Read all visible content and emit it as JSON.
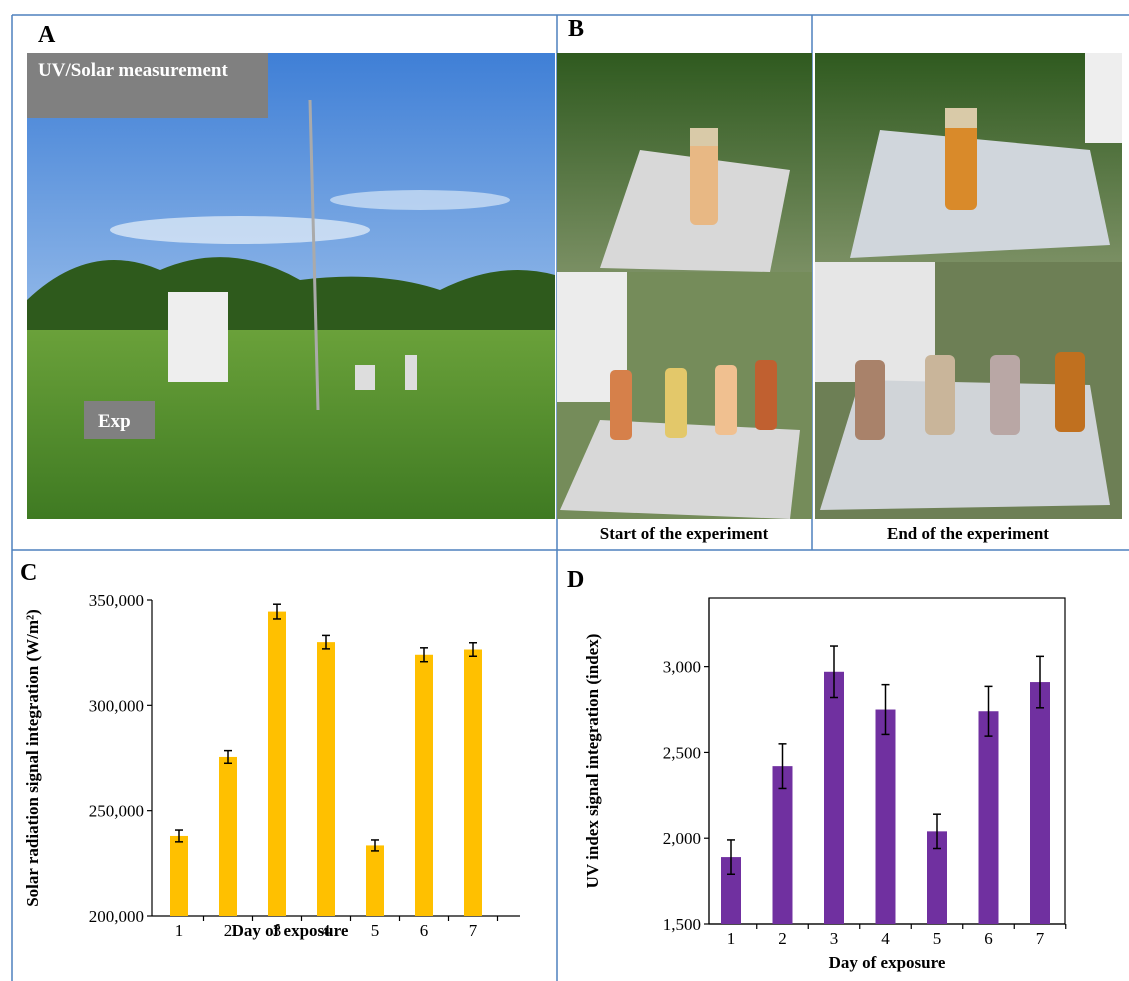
{
  "panels": {
    "a": {
      "label": "A",
      "overlay_top": "UV/Solar measurement",
      "overlay_bottom": "Exp"
    },
    "b": {
      "label": "B",
      "caption_start": "Start of the experiment",
      "caption_end": "End of the experiment"
    },
    "c": {
      "label": "C"
    },
    "d": {
      "label": "D"
    }
  },
  "chart_data": [
    {
      "type": "bar",
      "x_label": "Day of exposure",
      "y_label": "Solar radiation signal integration (W/m²)",
      "categories": [
        "1",
        "2",
        "3",
        "4",
        "5",
        "6",
        "7"
      ],
      "series": [
        {
          "color": "#ffc000",
          "values": [
            238000,
            275500,
            344500,
            330000,
            233500,
            324000,
            326500
          ],
          "errors": [
            2800,
            3000,
            3500,
            3200,
            2600,
            3300,
            3200
          ]
        }
      ],
      "ylim": [
        200000,
        350000
      ],
      "yticks": [
        {
          "value": 200000,
          "label": "200,000"
        },
        {
          "value": 250000,
          "label": "250,000"
        },
        {
          "value": 300000,
          "label": "300,000"
        },
        {
          "value": 350000,
          "label": "350,000"
        }
      ],
      "grid": false,
      "frame": false
    },
    {
      "type": "bar",
      "x_label": "Day of exposure",
      "y_label": "UV index signal integration (index)",
      "categories": [
        "1",
        "2",
        "3",
        "4",
        "5",
        "6",
        "7"
      ],
      "series": [
        {
          "color": "#7030a0",
          "values": [
            1890,
            2420,
            2970,
            2750,
            2040,
            2740,
            2910
          ],
          "errors": [
            100,
            130,
            150,
            145,
            100,
            145,
            150
          ]
        }
      ],
      "ylim": [
        1500,
        3400
      ],
      "yticks": [
        {
          "value": 1500,
          "label": "1,500"
        },
        {
          "value": 2000,
          "label": "2,000"
        },
        {
          "value": 2500,
          "label": "2,500"
        },
        {
          "value": 3000,
          "label": "3,000"
        }
      ],
      "grid": false,
      "frame": true
    }
  ]
}
